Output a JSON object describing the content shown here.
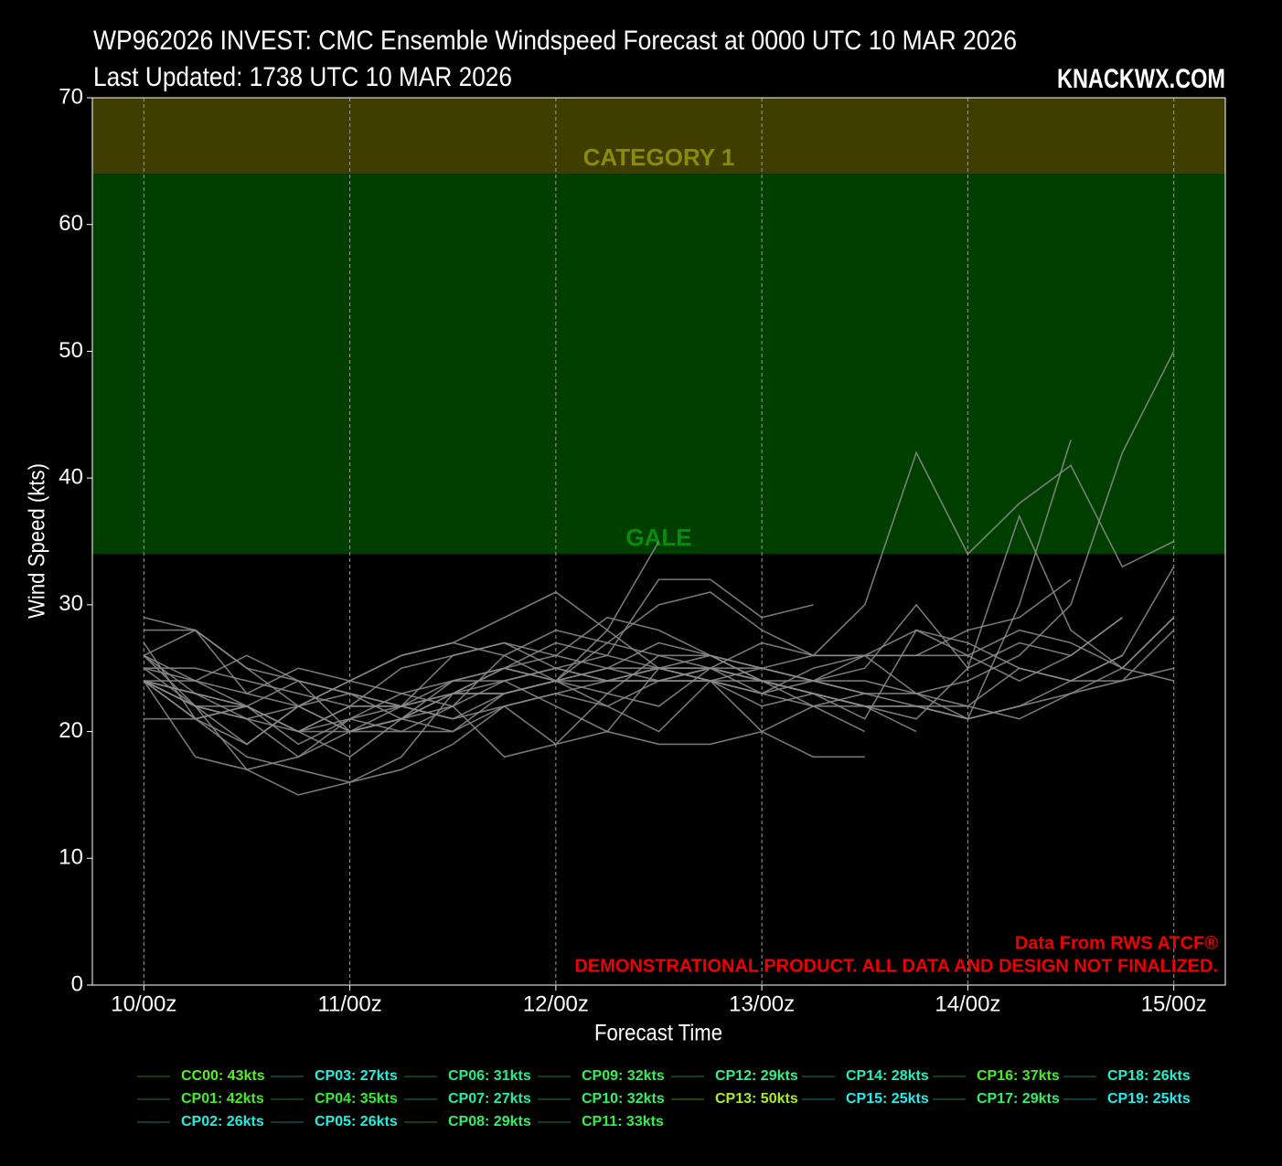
{
  "chart_data": {
    "type": "line",
    "title": "WP962026 INVEST: CMC Ensemble Windspeed Forecast at 0000 UTC 10 MAR 2026",
    "subtitle": "Last Updated: 1738 UTC 10 MAR 2026",
    "brand": "KNACKWX.COM",
    "annotations": [
      "Data From RWS ATCF®",
      "DEMONSTRATIONAL PRODUCT. ALL DATA AND DESIGN NOT FINALIZED."
    ],
    "xlabel": "Forecast Time",
    "ylabel": "Wind Speed (kts)",
    "x": [
      0,
      6,
      12,
      18,
      24,
      30,
      36,
      42,
      48,
      54,
      60,
      66,
      72,
      78,
      84,
      90,
      96,
      102,
      108,
      114,
      120
    ],
    "xlim": [
      -6,
      126
    ],
    "xticks": [
      {
        "value": 0,
        "label": "10/00z"
      },
      {
        "value": 24,
        "label": "11/00z"
      },
      {
        "value": 48,
        "label": "12/00z"
      },
      {
        "value": 72,
        "label": "13/00z"
      },
      {
        "value": 96,
        "label": "14/00z"
      },
      {
        "value": 120,
        "label": "15/00z"
      }
    ],
    "ylim": [
      0,
      70
    ],
    "yticks": [
      0,
      10,
      20,
      30,
      40,
      50,
      60,
      70
    ],
    "grid": true,
    "line_color": "#8c8c8c",
    "bands": [
      {
        "label": "GALE",
        "from": 34,
        "to": 64,
        "color": "#003f00",
        "text_color": "#0b8a0b"
      },
      {
        "label": "CATEGORY 1",
        "from": 64,
        "to": 70,
        "color": "#3f3d00",
        "text_color": "#8a8a0b"
      }
    ],
    "series": [
      {
        "name": "CC00: 43kts",
        "color": "#55ee22",
        "values": [
          24,
          22,
          21,
          22,
          20,
          22,
          23,
          24,
          25,
          24,
          24,
          25,
          24,
          23,
          22,
          22,
          21,
          30,
          43,
          null,
          null
        ]
      },
      {
        "name": "CP01: 42kts",
        "color": "#44ee22",
        "values": [
          26,
          28,
          25,
          22,
          24,
          26,
          27,
          26,
          28,
          27,
          26,
          25,
          27,
          26,
          30,
          42,
          34,
          38,
          41,
          33,
          35
        ]
      },
      {
        "name": "CP02: 26kts",
        "color": "#22eedd",
        "values": [
          25,
          24,
          23,
          22,
          24,
          23,
          24,
          25,
          24,
          25,
          24,
          24,
          23,
          24,
          24,
          23,
          21,
          22,
          24,
          26,
          null
        ]
      },
      {
        "name": "CP03: 27kts",
        "color": "#22eedd",
        "values": [
          24,
          23,
          22,
          20,
          20,
          21,
          23,
          25,
          27,
          26,
          25,
          26,
          25,
          24,
          23,
          22,
          22,
          21,
          23,
          25,
          24
        ]
      },
      {
        "name": "CP04: 35kts",
        "color": "#33ee33",
        "values": [
          24,
          21,
          22,
          19,
          21,
          23,
          22,
          26,
          24,
          28,
          35,
          null,
          null,
          null,
          null,
          null,
          null,
          null,
          null,
          null,
          null
        ]
      },
      {
        "name": "CP05: 26kts",
        "color": "#22eedd",
        "values": [
          26,
          24,
          22,
          24,
          23,
          22,
          21,
          22,
          23,
          22,
          24,
          24,
          24,
          23,
          22,
          20,
          null,
          null,
          null,
          null,
          null
        ]
      },
      {
        "name": "CP06: 31kts",
        "color": "#22ee88",
        "values": [
          28,
          28,
          23,
          25,
          24,
          26,
          27,
          29,
          31,
          28,
          25,
          24,
          25,
          24,
          23,
          null,
          null,
          null,
          null,
          null,
          null
        ]
      },
      {
        "name": "CP07: 27kts",
        "color": "#22eeaa",
        "values": [
          21,
          21,
          19,
          22,
          20,
          20,
          20,
          23,
          24,
          25,
          27,
          26,
          24,
          23,
          22,
          null,
          null,
          null,
          null,
          null,
          null
        ]
      },
      {
        "name": "CP08: 29kts",
        "color": "#33ee66",
        "values": [
          25,
          25,
          24,
          23,
          22,
          25,
          26,
          27,
          26,
          29,
          28,
          26,
          25,
          24,
          26,
          26,
          26,
          28,
          27,
          25,
          29
        ]
      },
      {
        "name": "CP09: 32kts",
        "color": "#33ee55",
        "values": [
          26,
          22,
          21,
          20,
          22,
          22,
          26,
          27,
          25,
          26,
          32,
          32,
          29,
          30,
          null,
          null,
          null,
          null,
          null,
          null,
          null
        ]
      },
      {
        "name": "CP10: 32kts",
        "color": "#33ee66",
        "values": [
          24,
          24,
          26,
          24,
          20,
          21,
          23,
          23,
          24,
          27,
          30,
          31,
          28,
          26,
          26,
          26,
          28,
          29,
          32,
          null,
          null
        ]
      },
      {
        "name": "CP11: 33kts",
        "color": "#33ee44",
        "values": [
          24,
          21,
          18,
          17,
          16,
          18,
          23,
          25,
          26,
          25,
          25,
          25,
          23,
          25,
          26,
          23,
          22,
          25,
          24,
          26,
          33
        ]
      },
      {
        "name": "CP12: 29kts",
        "color": "#33ee88",
        "values": [
          29,
          28,
          25,
          24,
          23,
          22,
          24,
          24,
          25,
          24,
          25,
          24,
          23,
          22,
          22,
          21,
          25,
          27,
          26,
          29,
          null
        ]
      },
      {
        "name": "CP13: 50kts",
        "color": "#aaee22",
        "values": [
          24,
          23,
          22,
          20,
          21,
          22,
          21,
          23,
          24,
          24,
          25,
          25,
          24,
          22,
          23,
          23,
          24,
          26,
          30,
          42,
          50
        ]
      },
      {
        "name": "CP14: 28kts",
        "color": "#22eebb",
        "values": [
          25,
          22,
          19,
          22,
          23,
          21,
          20,
          22,
          23,
          24,
          24,
          25,
          25,
          26,
          26,
          28,
          27,
          25,
          24,
          24,
          28
        ]
      },
      {
        "name": "CP15: 25kts",
        "color": "#22eeee",
        "values": [
          24,
          22,
          22,
          20,
          22,
          22,
          23,
          23,
          24,
          23,
          22,
          25,
          24,
          23,
          22,
          22,
          21,
          22,
          23,
          24,
          25
        ]
      },
      {
        "name": "CP16: 37kts",
        "color": "#44ee22",
        "values": [
          24,
          18,
          17,
          18,
          20,
          21,
          22,
          18,
          19,
          23,
          26,
          26,
          24,
          24,
          25,
          30,
          25,
          37,
          28,
          25,
          29
        ]
      },
      {
        "name": "CP17: 29kts",
        "color": "#33ee66",
        "values": [
          27,
          21,
          22,
          20,
          18,
          21,
          24,
          25,
          24,
          22,
          20,
          24,
          22,
          23,
          21,
          28,
          26,
          24,
          26,
          29,
          null
        ]
      },
      {
        "name": "CP18: 26kts",
        "color": "#22eecc",
        "values": [
          26,
          23,
          21,
          18,
          21,
          20,
          22,
          24,
          22,
          20,
          19,
          19,
          20,
          18,
          18,
          null,
          null,
          null,
          null,
          null,
          null
        ]
      },
      {
        "name": "CP19: 25kts",
        "color": "#22eeee",
        "values": [
          24,
          22,
          17,
          15,
          16,
          17,
          19,
          22,
          19,
          20,
          25,
          24,
          20,
          22,
          20,
          null,
          null,
          null,
          null,
          null,
          null
        ]
      }
    ]
  }
}
